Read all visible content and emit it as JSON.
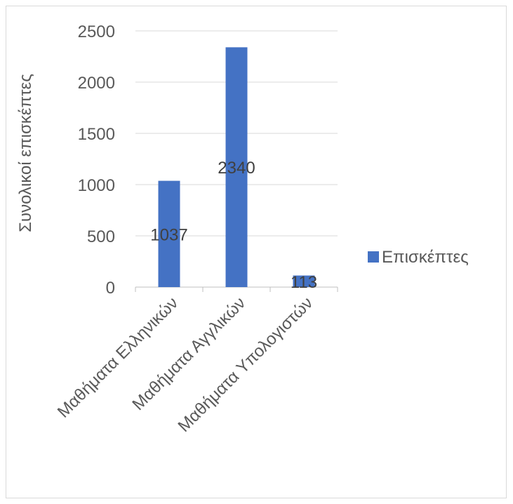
{
  "chart_data": {
    "type": "bar",
    "categories": [
      "Μαθήματα Ελληνικών",
      "Μαθήματα Αγγλικών",
      "Μαθήματα Υπολογιστών"
    ],
    "series": [
      {
        "name": "Επισκέπτες",
        "values": [
          1037,
          2340,
          113
        ],
        "color": "#4472c4"
      }
    ],
    "ylabel": "Συνολικοί επισκέπτες",
    "xlabel": "",
    "ylim": [
      0,
      2500
    ],
    "yticks": [
      0,
      500,
      1000,
      1500,
      2000,
      2500
    ],
    "grid": true,
    "legend_position": "right",
    "data_labels": true
  }
}
